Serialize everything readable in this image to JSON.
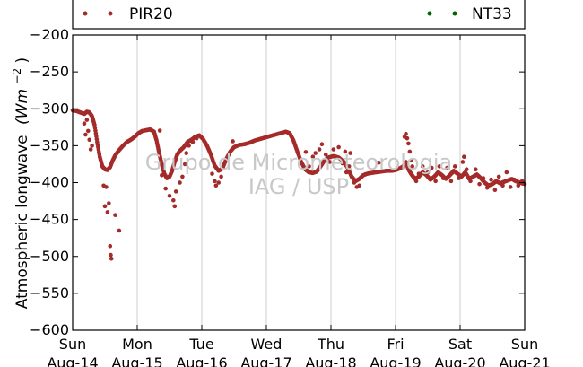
{
  "chart_data": {
    "type": "scatter",
    "ylabel": "Atmospheric longwave (Wm⁻²)",
    "ylabel_main": "Atmospheric longwave",
    "ylabel_unit": "(Wm",
    "ylabel_exp": "−2",
    "ylabel_close": ")",
    "ylim": [
      -600,
      -200
    ],
    "yticks": [
      -200,
      -250,
      -300,
      -350,
      -400,
      -450,
      -500,
      -550,
      -600
    ],
    "ytick_labels": [
      "−200",
      "−250",
      "−300",
      "−350",
      "−400",
      "−450",
      "−500",
      "−550",
      "−600"
    ],
    "xlim": [
      0,
      7
    ],
    "xticks": [
      0,
      1,
      2,
      3,
      4,
      5,
      6,
      7
    ],
    "xtick_day": [
      "Sun",
      "Mon",
      "Tue",
      "Wed",
      "Thu",
      "Fri",
      "Sat",
      "Sun"
    ],
    "xtick_date": [
      "Aug-14",
      "Aug-15",
      "Aug-16",
      "Aug-17",
      "Aug-18",
      "Aug-19",
      "Aug-20",
      "Aug-21"
    ],
    "grid": "vertical",
    "legend_position": "top",
    "watermark": [
      "Grupo de Micrometeorologia",
      "IAG / USP"
    ],
    "series": [
      {
        "name": "PIR20",
        "color": "#a52a2a",
        "points": [
          [
            0.0,
            -302
          ],
          [
            0.06,
            -303
          ],
          [
            0.12,
            -305
          ],
          [
            0.18,
            -307
          ],
          [
            0.22,
            -304
          ],
          [
            0.26,
            -305
          ],
          [
            0.3,
            -310
          ],
          [
            0.34,
            -322
          ],
          [
            0.38,
            -345
          ],
          [
            0.42,
            -365
          ],
          [
            0.46,
            -378
          ],
          [
            0.5,
            -382
          ],
          [
            0.54,
            -383
          ],
          [
            0.58,
            -379
          ],
          [
            0.62,
            -370
          ],
          [
            0.66,
            -363
          ],
          [
            0.72,
            -356
          ],
          [
            0.78,
            -350
          ],
          [
            0.84,
            -345
          ],
          [
            0.9,
            -342
          ],
          [
            0.96,
            -338
          ],
          [
            1.02,
            -333
          ],
          [
            1.08,
            -330
          ],
          [
            1.14,
            -329
          ],
          [
            1.2,
            -328
          ],
          [
            1.26,
            -331
          ],
          [
            1.3,
            -343
          ],
          [
            1.34,
            -360
          ],
          [
            1.38,
            -375
          ],
          [
            1.42,
            -388
          ],
          [
            1.46,
            -394
          ],
          [
            1.5,
            -392
          ],
          [
            1.54,
            -384
          ],
          [
            1.58,
            -372
          ],
          [
            1.62,
            -362
          ],
          [
            1.66,
            -357
          ],
          [
            1.72,
            -352
          ],
          [
            1.78,
            -345
          ],
          [
            1.84,
            -342
          ],
          [
            1.9,
            -338
          ],
          [
            1.96,
            -336
          ],
          [
            2.02,
            -341
          ],
          [
            2.08,
            -350
          ],
          [
            2.14,
            -362
          ],
          [
            2.2,
            -377
          ],
          [
            2.26,
            -384
          ],
          [
            2.32,
            -381
          ],
          [
            2.38,
            -368
          ],
          [
            2.44,
            -358
          ],
          [
            2.5,
            -352
          ],
          [
            2.58,
            -349
          ],
          [
            2.66,
            -348
          ],
          [
            2.74,
            -346
          ],
          [
            2.82,
            -343
          ],
          [
            2.9,
            -341
          ],
          [
            2.98,
            -339
          ],
          [
            3.06,
            -337
          ],
          [
            3.14,
            -335
          ],
          [
            3.22,
            -333
          ],
          [
            3.3,
            -331
          ],
          [
            3.36,
            -333
          ],
          [
            3.42,
            -343
          ],
          [
            3.48,
            -358
          ],
          [
            3.54,
            -372
          ],
          [
            3.6,
            -382
          ],
          [
            3.66,
            -386
          ],
          [
            3.72,
            -387
          ],
          [
            3.78,
            -385
          ],
          [
            3.84,
            -378
          ],
          [
            3.9,
            -370
          ],
          [
            3.96,
            -366
          ],
          [
            4.04,
            -364
          ],
          [
            4.12,
            -366
          ],
          [
            4.2,
            -372
          ],
          [
            4.26,
            -380
          ],
          [
            4.32,
            -392
          ],
          [
            4.38,
            -398
          ],
          [
            4.44,
            -395
          ],
          [
            4.5,
            -390
          ],
          [
            4.56,
            -388
          ],
          [
            4.62,
            -387
          ],
          [
            4.7,
            -386
          ],
          [
            4.78,
            -385
          ],
          [
            4.86,
            -384
          ],
          [
            4.94,
            -384
          ],
          [
            5.0,
            -383
          ],
          [
            5.06,
            -381
          ],
          [
            5.12,
            -378
          ],
          [
            5.16,
            -372
          ],
          [
            5.2,
            -382
          ],
          [
            5.24,
            -388
          ],
          [
            5.3,
            -395
          ],
          [
            5.36,
            -392
          ],
          [
            5.42,
            -386
          ],
          [
            5.48,
            -390
          ],
          [
            5.54,
            -396
          ],
          [
            5.6,
            -392
          ],
          [
            5.66,
            -386
          ],
          [
            5.72,
            -390
          ],
          [
            5.78,
            -395
          ],
          [
            5.84,
            -390
          ],
          [
            5.9,
            -384
          ],
          [
            5.96,
            -388
          ],
          [
            6.02,
            -392
          ],
          [
            6.08,
            -386
          ],
          [
            6.14,
            -395
          ],
          [
            6.2,
            -392
          ],
          [
            6.26,
            -389
          ],
          [
            6.32,
            -394
          ],
          [
            6.38,
            -400
          ],
          [
            6.44,
            -404
          ],
          [
            6.5,
            -402
          ],
          [
            6.56,
            -398
          ],
          [
            6.62,
            -401
          ],
          [
            6.68,
            -399
          ],
          [
            6.74,
            -397
          ],
          [
            6.8,
            -395
          ],
          [
            6.86,
            -398
          ],
          [
            6.92,
            -400
          ],
          [
            7.0,
            -402
          ],
          [
            0.22,
            -315
          ],
          [
            0.24,
            -330
          ],
          [
            0.26,
            -342
          ],
          [
            0.28,
            -355
          ],
          [
            0.3,
            -350
          ],
          [
            0.2,
            -335
          ],
          [
            0.18,
            -320
          ],
          [
            0.48,
            -404
          ],
          [
            0.52,
            -406
          ],
          [
            0.5,
            -432
          ],
          [
            0.56,
            -428
          ],
          [
            0.54,
            -440
          ],
          [
            0.58,
            -486
          ],
          [
            0.59,
            -498
          ],
          [
            0.6,
            -503
          ],
          [
            0.66,
            -444
          ],
          [
            0.72,
            -465
          ],
          [
            1.38,
            -390
          ],
          [
            1.44,
            -408
          ],
          [
            1.5,
            -418
          ],
          [
            1.56,
            -424
          ],
          [
            1.58,
            -432
          ],
          [
            1.6,
            -412
          ],
          [
            1.66,
            -400
          ],
          [
            1.7,
            -392
          ],
          [
            1.74,
            -375
          ],
          [
            1.76,
            -360
          ],
          [
            1.8,
            -350
          ],
          [
            1.86,
            -345
          ],
          [
            1.92,
            -340
          ],
          [
            2.16,
            -388
          ],
          [
            2.2,
            -398
          ],
          [
            2.22,
            -404
          ],
          [
            2.26,
            -400
          ],
          [
            2.3,
            -392
          ],
          [
            3.66,
            -378
          ],
          [
            3.72,
            -365
          ],
          [
            3.76,
            -360
          ],
          [
            3.82,
            -355
          ],
          [
            3.86,
            -348
          ],
          [
            3.92,
            -362
          ],
          [
            3.98,
            -372
          ],
          [
            4.04,
            -355
          ],
          [
            4.12,
            -352
          ],
          [
            4.18,
            -374
          ],
          [
            4.24,
            -386
          ],
          [
            4.28,
            -378
          ],
          [
            4.36,
            -400
          ],
          [
            4.4,
            -406
          ],
          [
            4.44,
            -404
          ],
          [
            4.3,
            -360
          ],
          [
            4.22,
            -358
          ],
          [
            5.16,
            -334
          ],
          [
            5.18,
            -340
          ],
          [
            5.2,
            -347
          ],
          [
            5.22,
            -358
          ],
          [
            5.24,
            -370
          ],
          [
            5.26,
            -378
          ],
          [
            5.14,
            -338
          ],
          [
            5.32,
            -398
          ],
          [
            5.36,
            -388
          ],
          [
            5.42,
            -378
          ],
          [
            5.5,
            -386
          ],
          [
            5.56,
            -380
          ],
          [
            5.62,
            -398
          ],
          [
            5.68,
            -378
          ],
          [
            5.74,
            -394
          ],
          [
            5.8,
            -380
          ],
          [
            5.86,
            -398
          ],
          [
            5.92,
            -378
          ],
          [
            5.98,
            -394
          ],
          [
            6.04,
            -372
          ],
          [
            6.06,
            -365
          ],
          [
            6.1,
            -382
          ],
          [
            6.16,
            -398
          ],
          [
            6.24,
            -382
          ],
          [
            6.3,
            -402
          ],
          [
            6.36,
            -394
          ],
          [
            6.42,
            -407
          ],
          [
            6.48,
            -396
          ],
          [
            6.54,
            -410
          ],
          [
            6.6,
            -392
          ],
          [
            6.66,
            -404
          ],
          [
            6.72,
            -386
          ],
          [
            6.78,
            -406
          ],
          [
            6.84,
            -396
          ],
          [
            6.9,
            -404
          ],
          [
            6.96,
            -398
          ]
        ]
      },
      {
        "name": "NT33",
        "color": "#006400",
        "points": []
      }
    ]
  }
}
